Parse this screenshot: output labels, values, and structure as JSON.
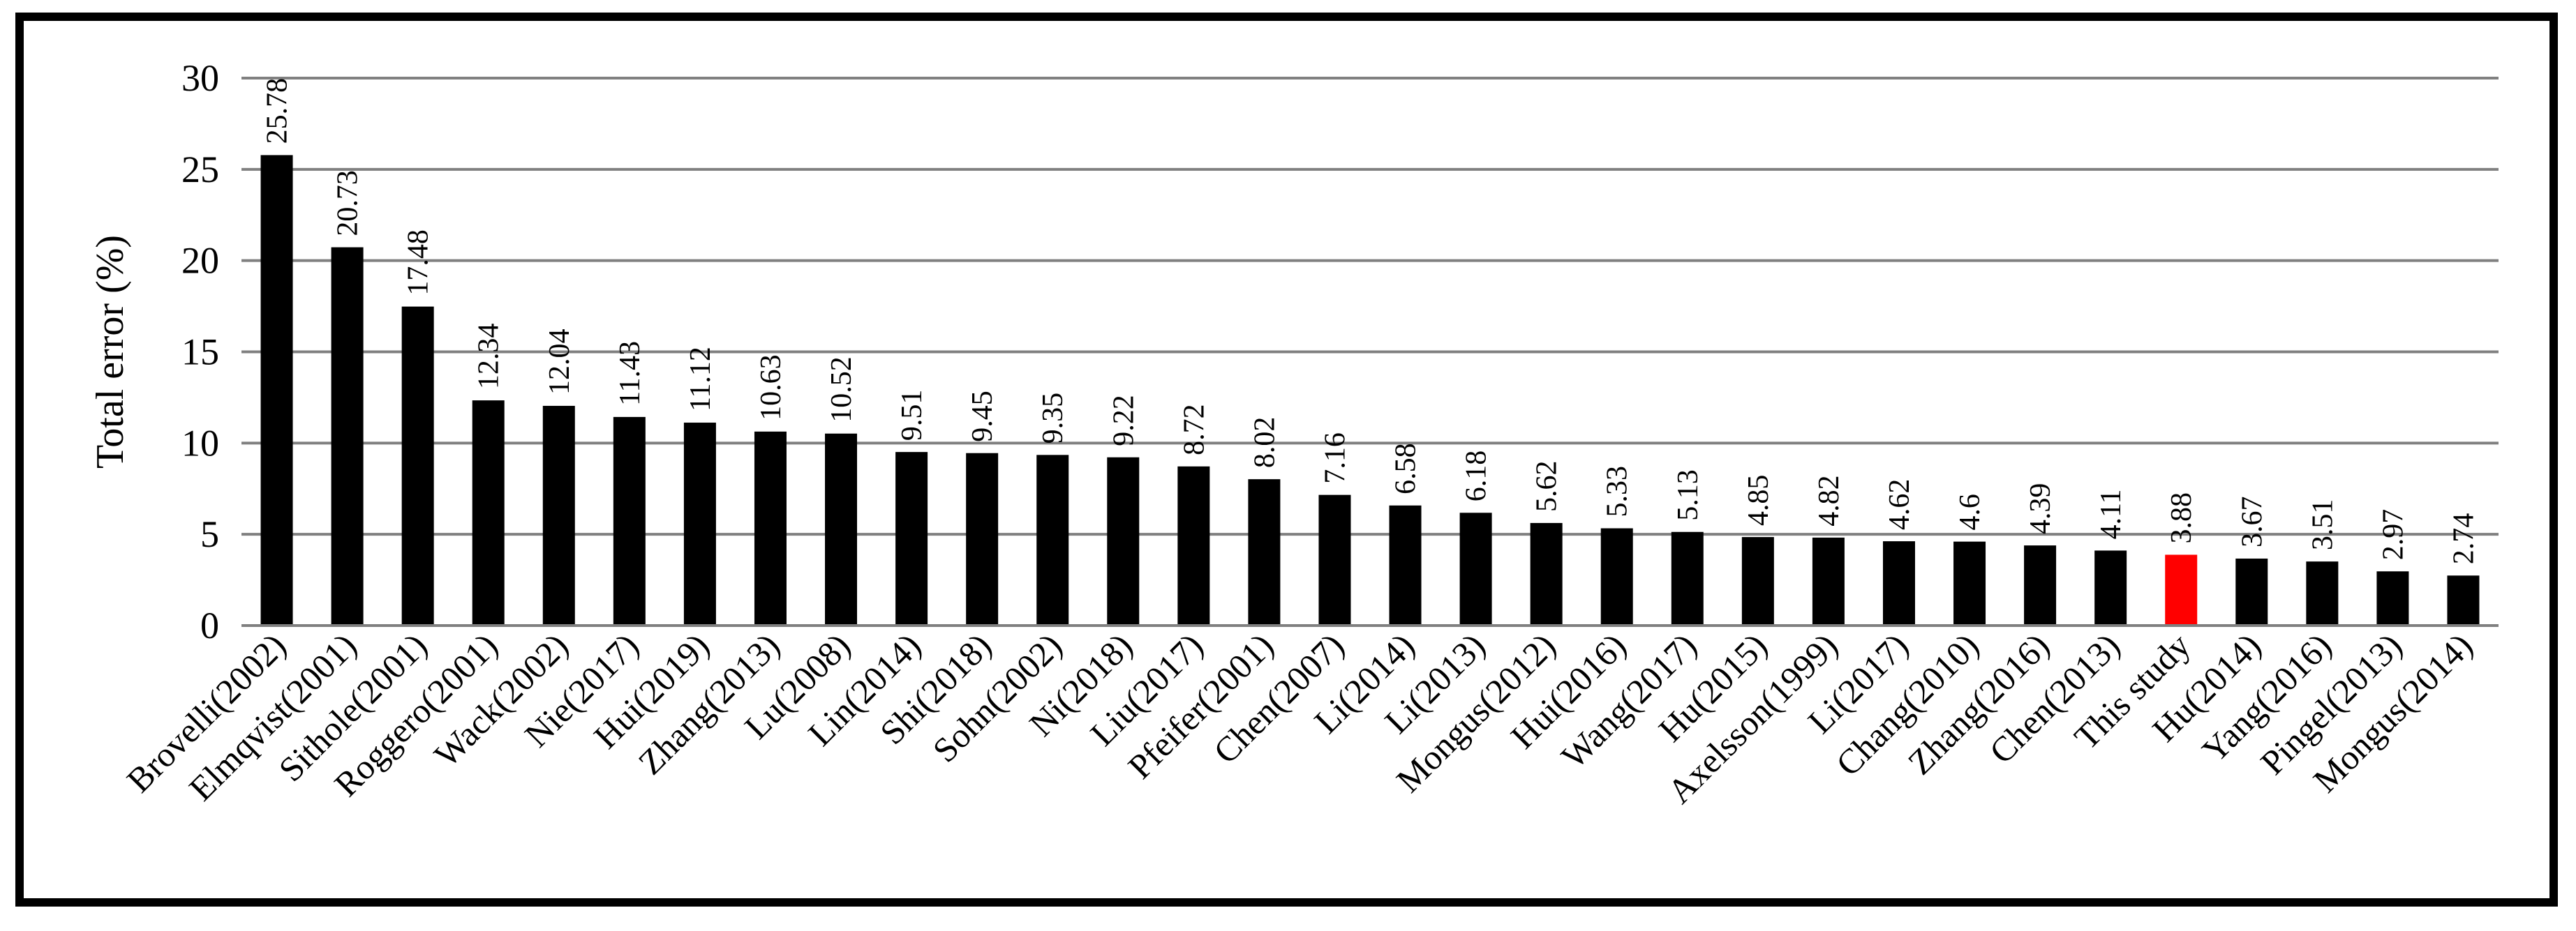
{
  "chart_data": {
    "type": "bar",
    "title": "",
    "xlabel": "",
    "ylabel": "Total error (%)",
    "ylim": [
      0,
      30
    ],
    "yticks": [
      "0",
      "5",
      "10",
      "15",
      "20",
      "25",
      "30"
    ],
    "grid": true,
    "legend": "none",
    "categories": [
      "Brovelli(2002)",
      "Elmqvist(2001)",
      "Sithole(2001)",
      "Roggero(2001)",
      "Wack(2002)",
      "Nie(2017)",
      "Hui(2019)",
      "Zhang(2013)",
      "Lu(2008)",
      "Lin(2014)",
      "Shi(2018)",
      "Sohn(2002)",
      "Ni(2018)",
      "Liu(2017)",
      "Pfeifer(2001)",
      "Chen(2007)",
      "Li(2014)",
      "Li(2013)",
      "Mongus(2012)",
      "Hui(2016)",
      "Wang(2017)",
      "Hu(2015)",
      "Axelsson(1999)",
      "Li(2017)",
      "Chang(2010)",
      "Zhang(2016)",
      "Chen(2013)",
      "This study",
      "Hu(2014)",
      "Yang(2016)",
      "Pingel(2013)",
      "Mongus(2014)"
    ],
    "values": [
      25.78,
      20.73,
      17.48,
      12.34,
      12.04,
      11.43,
      11.12,
      10.63,
      10.52,
      9.51,
      9.45,
      9.35,
      9.22,
      8.72,
      8.02,
      7.16,
      6.58,
      6.18,
      5.62,
      5.33,
      5.13,
      4.85,
      4.82,
      4.62,
      4.6,
      4.39,
      4.11,
      3.88,
      3.67,
      3.51,
      2.97,
      2.74
    ],
    "value_labels": [
      "25.78",
      "20.73",
      "17.48",
      "12.34",
      "12.04",
      "11.43",
      "11.12",
      "10.63",
      "10.52",
      "9.51",
      "9.45",
      "9.35",
      "9.22",
      "8.72",
      "8.02",
      "7.16",
      "6.58",
      "6.18",
      "5.62",
      "5.33",
      "5.13",
      "4.85",
      "4.82",
      "4.62",
      "4.6",
      "4.39",
      "4.11",
      "3.88",
      "3.67",
      "3.51",
      "2.97",
      "2.74"
    ],
    "highlight_category": "This study",
    "colors": {
      "bar": "#000000",
      "highlight": "#ff0000",
      "grid": "#808080",
      "axis": "#808080"
    }
  }
}
